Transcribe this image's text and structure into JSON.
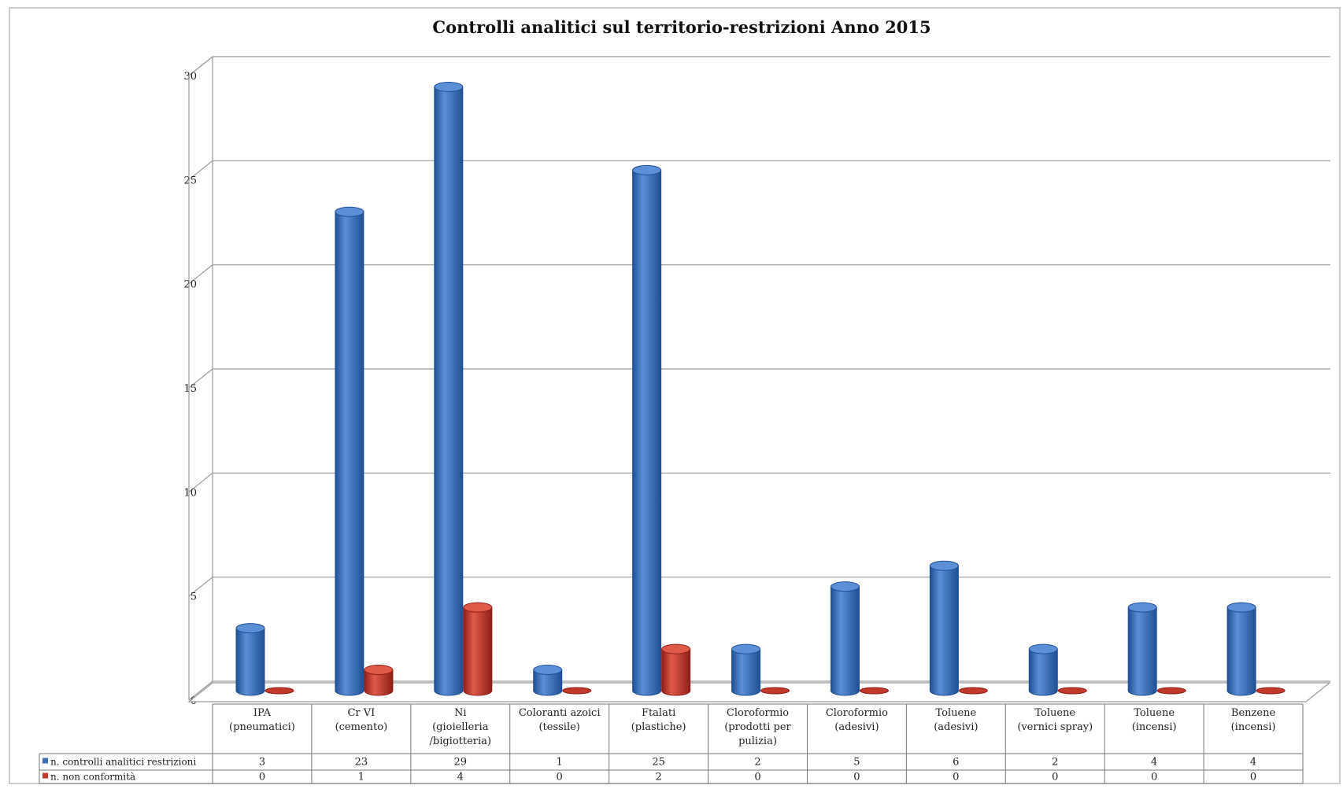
{
  "chart_data": {
    "type": "bar",
    "title": "Controlli analitici sul territorio-restrizioni Anno 2015",
    "categories": [
      [
        "IPA",
        "(pneumatici)"
      ],
      [
        "Cr VI",
        "(cemento)"
      ],
      [
        "Ni",
        "(gioielleria",
        "/bigiotteria)"
      ],
      [
        "Coloranti azoici",
        "(tessile)"
      ],
      [
        "Ftalati",
        "(plastiche)"
      ],
      [
        "Cloroformio",
        "(prodotti per",
        "pulizia)"
      ],
      [
        "Cloroformio",
        "(adesivi)"
      ],
      [
        "Toluene",
        "(adesivi)"
      ],
      [
        "Toluene",
        "(vernici spray)"
      ],
      [
        "Toluene",
        "(incensi)"
      ],
      [
        "Benzene",
        "(incensi)"
      ]
    ],
    "series": [
      {
        "name": "n. controlli analitici restrizioni",
        "color": "#3f6fb5",
        "values": [
          3,
          23,
          29,
          1,
          25,
          2,
          5,
          6,
          2,
          4,
          4
        ]
      },
      {
        "name": "n. non conformità",
        "color": "#c0392b",
        "values": [
          0,
          1,
          4,
          0,
          2,
          0,
          0,
          0,
          0,
          0,
          0
        ]
      }
    ],
    "ylim": [
      0,
      30
    ],
    "yticks": [
      0,
      5,
      10,
      15,
      20,
      25,
      30
    ],
    "grid": true,
    "legend": "data-table"
  }
}
